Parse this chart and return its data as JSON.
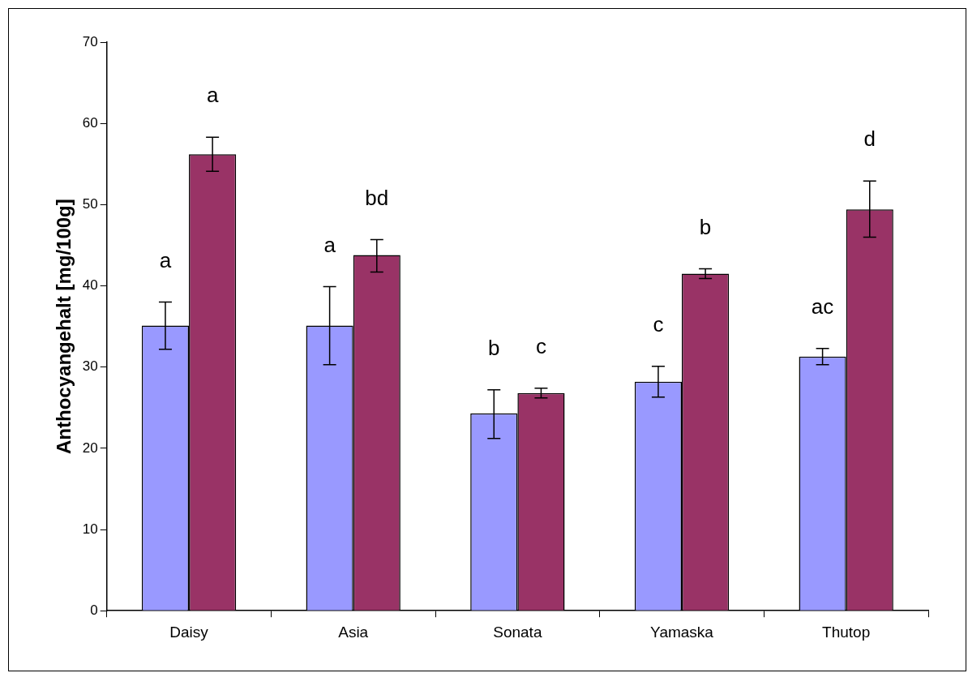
{
  "chart_data": {
    "type": "bar",
    "ylabel": "Anthocyangehalt [mg/100g]",
    "categories": [
      "Daisy",
      "Asia",
      "Sonata",
      "Yamaska",
      "Thutop"
    ],
    "series": [
      {
        "color": "#9999ff",
        "values": [
          35.1,
          35.1,
          24.3,
          28.2,
          31.3
        ],
        "errors": [
          [
            32.2,
            38.0
          ],
          [
            30.3,
            39.9
          ],
          [
            21.2,
            27.2
          ],
          [
            26.3,
            30.1
          ],
          [
            30.3,
            32.3
          ]
        ]
      },
      {
        "color": "#993366",
        "values": [
          56.2,
          43.8,
          26.8,
          41.5,
          49.4
        ],
        "errors": [
          [
            54.1,
            58.3
          ],
          [
            41.7,
            45.7
          ],
          [
            26.2,
            27.4
          ],
          [
            40.9,
            42.1
          ],
          [
            46.0,
            52.9
          ]
        ]
      }
    ],
    "ylim": [
      0,
      70
    ],
    "yticks": [
      0,
      10,
      20,
      30,
      40,
      50,
      60,
      70
    ],
    "grid": false,
    "legend": false,
    "annotations": [
      "a",
      "a",
      "a",
      "bd",
      "b",
      "c",
      "c",
      "b",
      "ac",
      "d"
    ]
  }
}
